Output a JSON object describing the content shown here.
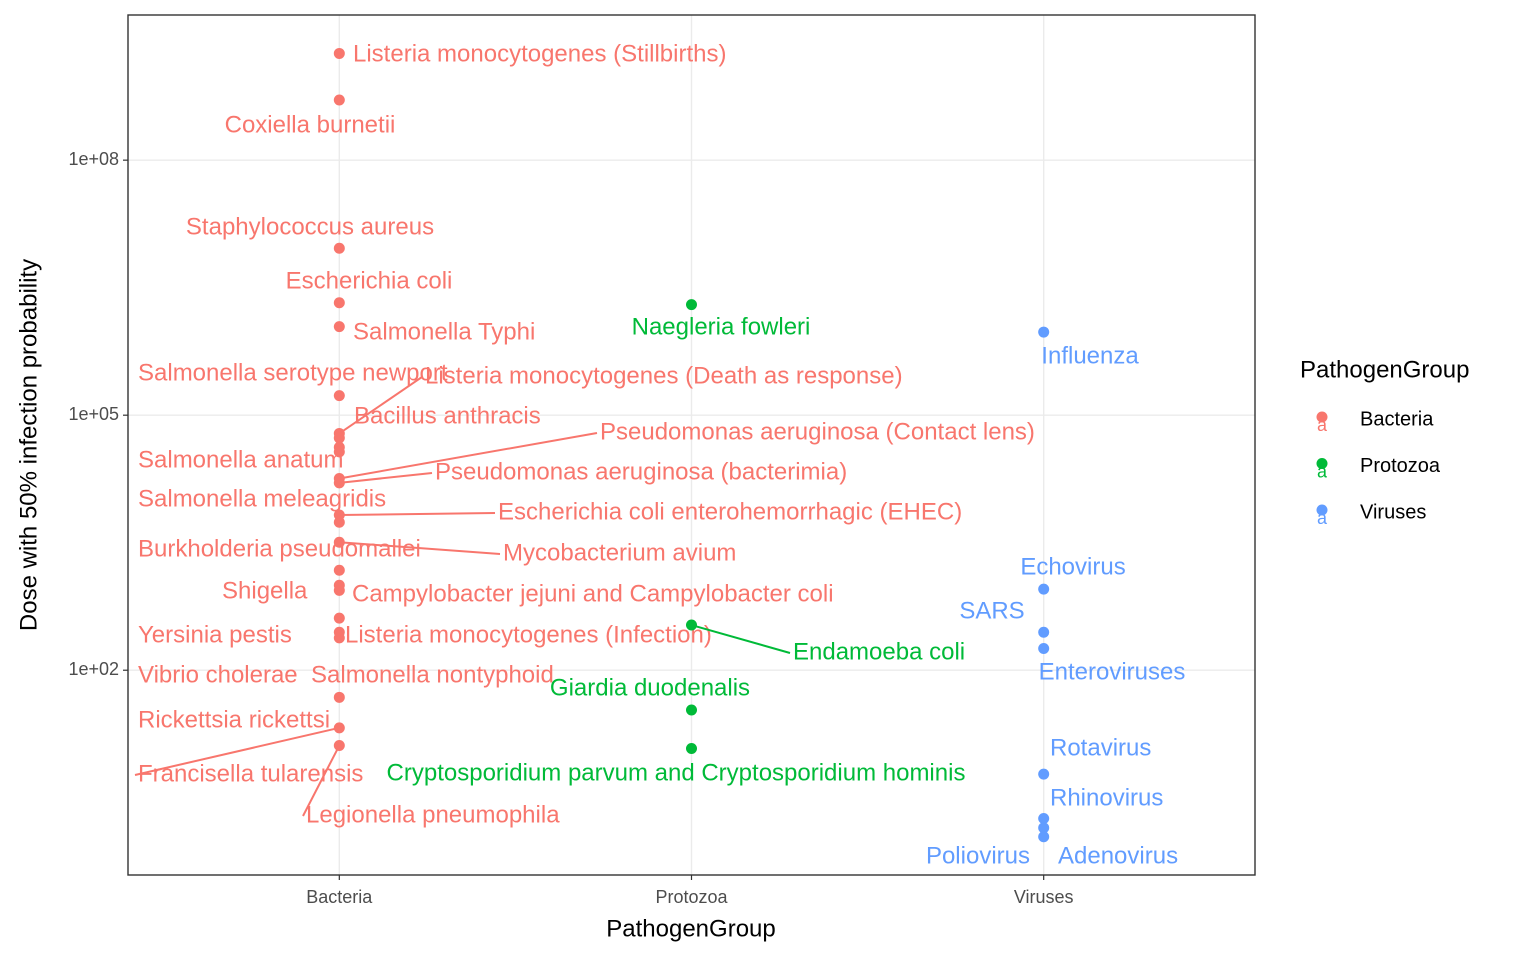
{
  "chart_data": {
    "type": "scatter",
    "xlabel": "PathogenGroup",
    "ylabel": "Dose with 50% infection probability",
    "legend_title": "PathogenGroup",
    "legend_key_glyph": "a",
    "legend_position": "right",
    "grid": true,
    "log_y": true,
    "categories": [
      "Bacteria",
      "Protozoa",
      "Viruses"
    ],
    "ylim": [
      0.39,
      5100000000
    ],
    "yticks": [
      {
        "value": 100,
        "label": "1e+02"
      },
      {
        "value": 100000,
        "label": "1e+05"
      },
      {
        "value": 100000000,
        "label": "1e+08"
      }
    ],
    "series": [
      {
        "name": "Bacteria",
        "color": "#F8766D",
        "labels": [
          "Listeria monocytogenes (Stillbirths)",
          "Coxiella burnetii",
          "Staphylococcus aureus",
          "Escherichia coli",
          "Salmonella Typhi",
          "Salmonella serotype newport",
          "Listeria monocytogenes (Death as response)",
          "Bacillus anthracis",
          "Salmonella anatum",
          "Salmonella meleagridis",
          "Pseudomonas aeruginosa (Contact lens)",
          "Pseudomonas aeruginosa (bacterimia)",
          "Escherichia coli enterohemorrhagic (EHEC)",
          "Burkholderia pseudomallei",
          "Mycobacterium avium",
          "Shigella",
          "Campylobacter jejuni and Campylobacter coli",
          "Yersinia pestis",
          "Listeria monocytogenes (Infection)",
          "Vibrio cholerae",
          "Salmonella nontyphoid",
          "Rickettsia rickettsi",
          "Francisella tularensis",
          "Legionella pneumophila"
        ],
        "values": [
          1800000000,
          510000000,
          9200000,
          2100000,
          1100000,
          170000,
          61000,
          54000,
          42000,
          37000,
          18000,
          16000,
          6700,
          5500,
          3200,
          1500,
          1000,
          870,
          410,
          280,
          240,
          48,
          21,
          13
        ]
      },
      {
        "name": "Protozoa",
        "color": "#00BA38",
        "labels": [
          "Naegleria fowleri",
          "Endamoeba coli",
          "Giardia duodenalis",
          "Cryptosporidium parvum and Cryptosporidium hominis"
        ],
        "values": [
          2000000,
          340,
          34,
          12
        ]
      },
      {
        "name": "Viruses",
        "color": "#619CFF",
        "labels": [
          "Influenza",
          "Echovirus",
          "SARS",
          "Enteroviruses",
          "Rotavirus",
          "Rhinovirus",
          "Poliovirus",
          "Adenovirus"
        ],
        "values": [
          950000,
          900,
          280,
          180,
          6,
          1.8,
          1.4,
          1.1
        ]
      }
    ]
  }
}
